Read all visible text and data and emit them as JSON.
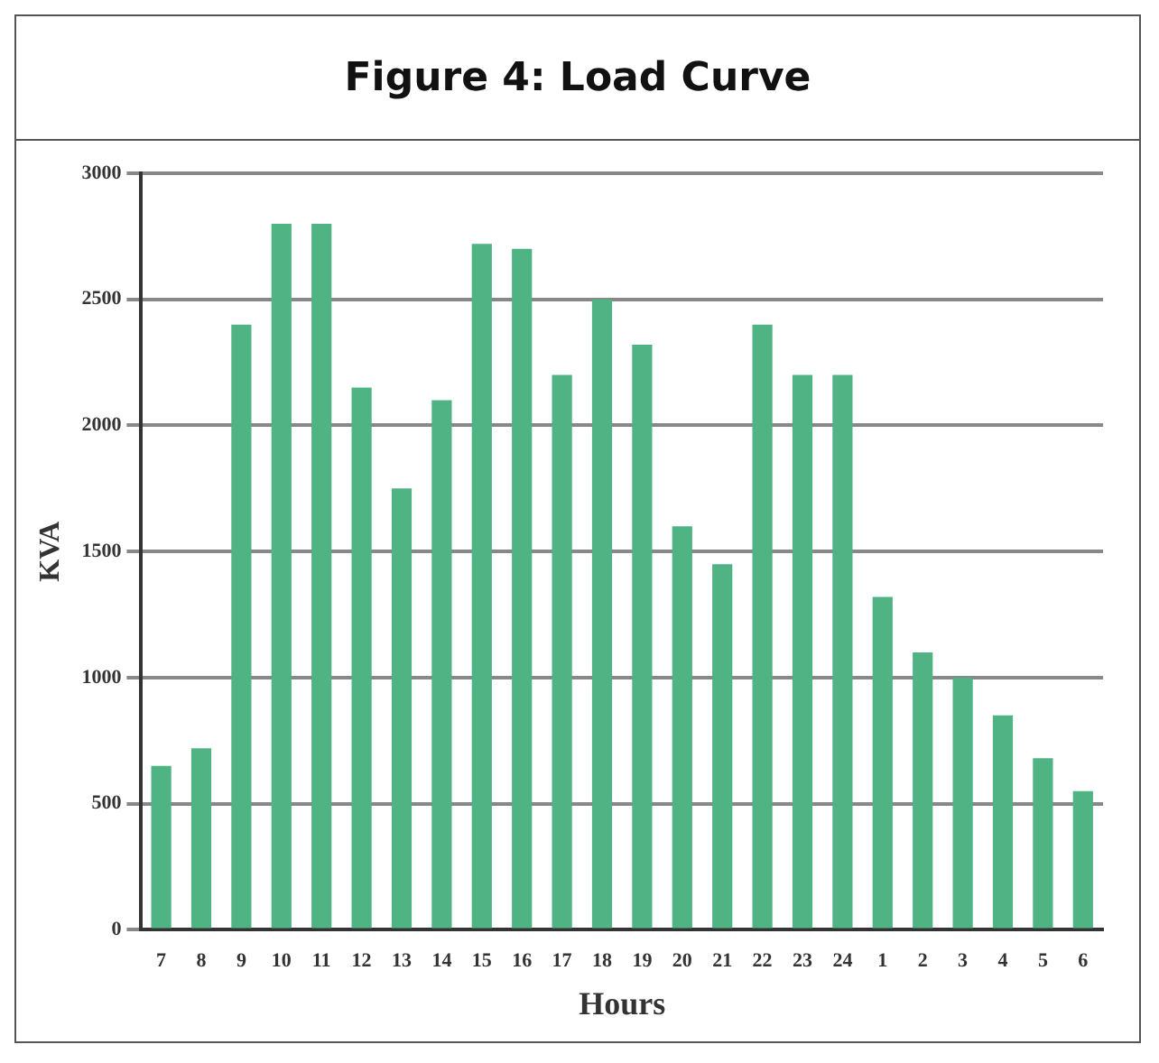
{
  "chart_data": {
    "type": "bar",
    "title": "Figure 4: Load Curve",
    "xlabel": "Hours",
    "ylabel": "KVA",
    "categories": [
      "7",
      "8",
      "9",
      "10",
      "11",
      "12",
      "13",
      "14",
      "15",
      "16",
      "17",
      "18",
      "19",
      "20",
      "21",
      "22",
      "23",
      "24",
      "1",
      "2",
      "3",
      "4",
      "5",
      "6"
    ],
    "values": [
      650,
      720,
      2400,
      2800,
      2800,
      2150,
      1750,
      2100,
      2720,
      2700,
      2200,
      2500,
      2320,
      1600,
      1450,
      2400,
      2200,
      2200,
      1320,
      1100,
      1000,
      850,
      680,
      550
    ],
    "color": "#4fb383",
    "ylim": [
      0,
      3000
    ],
    "yticks": [
      0,
      500,
      1000,
      1500,
      2000,
      2500,
      3000
    ],
    "grid": "y"
  }
}
